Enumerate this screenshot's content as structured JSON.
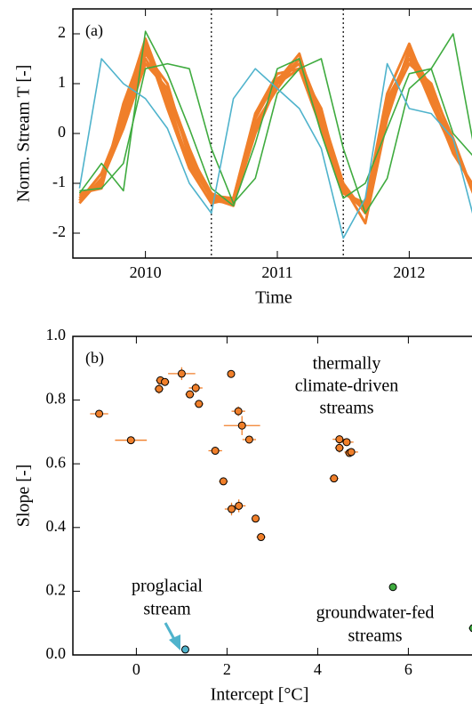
{
  "chart_data": [
    {
      "type": "line",
      "panel_label": "(a)",
      "ylabel": "Norm. Stream T [-]",
      "xlabel": "Time",
      "x": [
        2009.5,
        2009.667,
        2009.833,
        2010.0,
        2010.167,
        2010.333,
        2010.5,
        2010.667,
        2010.833,
        2011.0,
        2011.167,
        2011.333,
        2011.5,
        2011.667,
        2011.833,
        2012.0,
        2012.167,
        2012.333,
        2012.5
      ],
      "series": [
        {
          "color": "#f07f2a",
          "values": [
            -1.3,
            -1.0,
            0.4,
            1.7,
            0.6,
            -0.6,
            -1.3,
            -1.35,
            0.3,
            1.1,
            1.4,
            0.2,
            -1.1,
            -1.5,
            0.6,
            1.6,
            0.8,
            -0.3,
            -1.2
          ]
        },
        {
          "color": "#f07f2a",
          "values": [
            -1.4,
            -0.9,
            0.2,
            1.5,
            0.8,
            -0.4,
            -1.2,
            -1.4,
            0.1,
            1.0,
            1.5,
            0.4,
            -1.0,
            -1.6,
            0.4,
            1.7,
            0.9,
            -0.1,
            -1.3
          ]
        },
        {
          "color": "#f07f2a",
          "values": [
            -1.2,
            -1.1,
            0.6,
            1.8,
            0.5,
            -0.7,
            -1.4,
            -1.3,
            0.4,
            1.2,
            1.3,
            0.1,
            -1.2,
            -1.4,
            0.7,
            1.5,
            0.7,
            -0.4,
            -1.1
          ]
        },
        {
          "color": "#f07f2a",
          "values": [
            -1.35,
            -0.8,
            0.3,
            1.6,
            1.0,
            -0.5,
            -1.3,
            -1.45,
            0.2,
            0.9,
            1.5,
            0.3,
            -1.15,
            -1.55,
            0.5,
            1.4,
            1.0,
            -0.2,
            -1.25
          ]
        },
        {
          "color": "#f07f2a",
          "values": [
            -1.25,
            -1.05,
            0.5,
            1.9,
            0.7,
            -0.65,
            -1.25,
            -1.3,
            0.35,
            1.05,
            1.6,
            0.15,
            -1.05,
            -1.8,
            0.3,
            1.65,
            0.6,
            -0.35,
            -1.15
          ]
        },
        {
          "color": "#f07f2a",
          "values": [
            -1.3,
            -0.95,
            0.1,
            1.4,
            0.9,
            -0.3,
            -1.35,
            -1.4,
            0.0,
            1.0,
            1.3,
            0.5,
            -1.2,
            -1.45,
            0.8,
            1.8,
            0.7,
            -0.2,
            -1.3
          ]
        },
        {
          "color": "#3fab3f",
          "values": [
            -1.2,
            -0.6,
            -1.15,
            2.05,
            1.2,
            0.1,
            -1.1,
            -1.45,
            -0.2,
            1.3,
            1.5,
            0.0,
            -1.3,
            -1.0,
            0.1,
            1.2,
            1.3,
            0.0,
            -0.5
          ]
        },
        {
          "color": "#3fab3f",
          "values": [
            -1.15,
            -1.1,
            -0.6,
            1.3,
            1.4,
            1.3,
            -0.3,
            -1.4,
            -0.9,
            0.8,
            1.3,
            1.5,
            -0.3,
            -1.6,
            -0.9,
            0.9,
            1.3,
            2.0,
            -0.4
          ]
        },
        {
          "color": "#4fb3cc",
          "values": [
            -1.1,
            1.5,
            1.0,
            0.7,
            0.1,
            -1.0,
            -1.6,
            0.7,
            1.3,
            0.9,
            0.5,
            -0.3,
            -2.1,
            -1.3,
            1.4,
            0.5,
            0.4,
            -0.1,
            -1.8
          ]
        }
      ],
      "vlines": [
        2010.5,
        2011.5
      ],
      "xlim": [
        2009.45,
        2012.55
      ],
      "ylim": [
        -2.5,
        2.5
      ],
      "xticks": [
        2010,
        2011,
        2012
      ],
      "yticks": [
        -2,
        -1,
        0,
        1,
        2
      ]
    },
    {
      "type": "scatter",
      "panel_label": "(b)",
      "ylabel": "Slope [-]",
      "xlabel": "Intercept [°C]",
      "series": [
        {
          "color": "#f07f2a",
          "x": [
            -0.82,
            -0.12,
            0.5,
            0.53,
            0.63,
            1.0,
            1.18,
            1.31,
            1.38,
            1.74,
            1.92,
            2.09,
            2.1,
            2.26,
            2.25,
            2.33,
            2.49,
            2.63,
            2.75,
            4.36,
            4.48,
            4.48,
            4.64,
            4.7,
            4.74
          ],
          "values": [
            0.757,
            0.674,
            0.835,
            0.862,
            0.857,
            0.883,
            0.818,
            0.838,
            0.788,
            0.641,
            0.545,
            0.882,
            0.458,
            0.468,
            0.765,
            0.72,
            0.676,
            0.428,
            0.37,
            0.554,
            0.677,
            0.65,
            0.668,
            0.634,
            0.637
          ],
          "x_err": [
            0.2,
            0.35,
            0.1,
            0.1,
            0.1,
            0.3,
            0.1,
            0.15,
            0.1,
            0.15,
            0.1,
            0.05,
            0.15,
            0.15,
            0.15,
            0.4,
            0.15,
            0.05,
            0.1,
            0.1,
            0.15,
            0.1,
            0.15,
            0.1,
            0.15
          ],
          "y_err": [
            0.01,
            0.01,
            0.015,
            0.01,
            0.01,
            0.02,
            0.01,
            0.015,
            0.01,
            0.01,
            0.01,
            0.01,
            0.02,
            0.02,
            0.015,
            0.03,
            0.01,
            0.01,
            0.01,
            0.01,
            0.01,
            0.015,
            0.01,
            0.01,
            0.01
          ]
        },
        {
          "color": "#3fab3f",
          "x": [
            5.66,
            7.43
          ],
          "values": [
            0.213,
            0.084
          ],
          "x_err": [
            0.05,
            0.1
          ],
          "y_err": [
            0.005,
            0.005
          ]
        },
        {
          "color": "#4fb3cc",
          "x": [
            1.08
          ],
          "values": [
            0.017
          ],
          "x_err": [
            0.03
          ],
          "y_err": [
            0.003
          ]
        }
      ],
      "annotations": [
        {
          "lines": [
            "thermally",
            "climate-driven",
            "streams"
          ],
          "color": "#f07f2a"
        },
        {
          "lines": [
            "proglacial",
            "stream"
          ],
          "color": "#4fb3cc"
        },
        {
          "lines": [
            "groundwater-fed",
            "streams"
          ],
          "color": "#3fab3f"
        }
      ],
      "xlim": [
        -1.4,
        7.6
      ],
      "ylim": [
        0,
        1
      ],
      "xticks": [
        0,
        2,
        4,
        6
      ],
      "yticks": [
        {
          "value": 0,
          "label": "0.0"
        },
        {
          "value": 0.2,
          "label": "0.2"
        },
        {
          "value": 0.4,
          "label": "0.4"
        },
        {
          "value": 0.6,
          "label": "0.6"
        },
        {
          "value": 0.8,
          "label": "0.8"
        },
        {
          "value": 1,
          "label": "1.0"
        }
      ]
    }
  ]
}
